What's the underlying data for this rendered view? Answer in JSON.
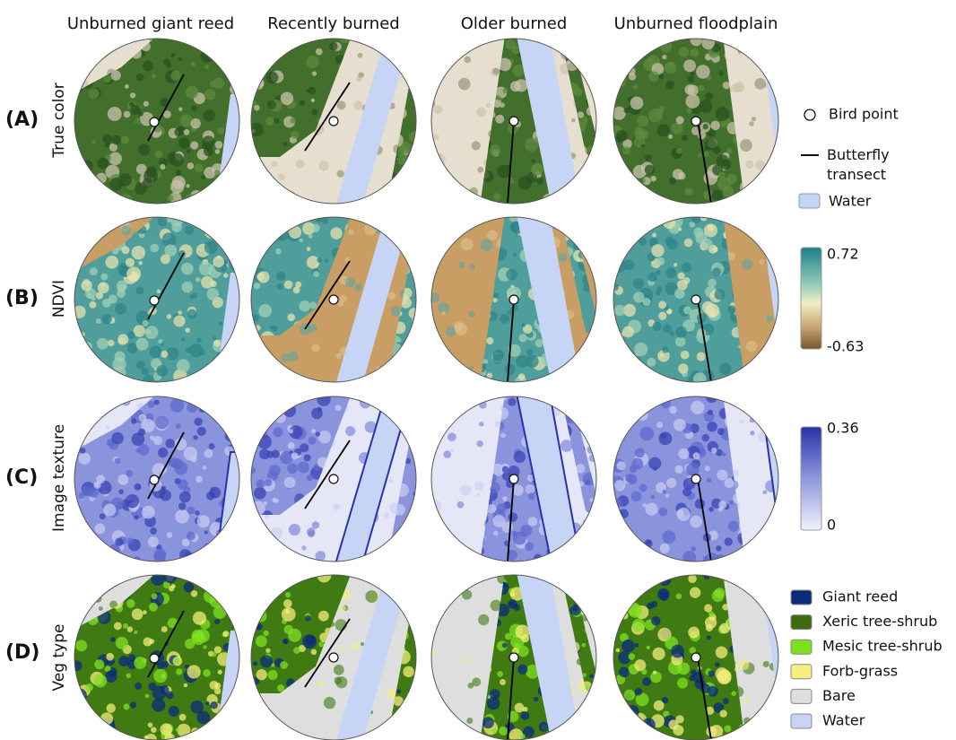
{
  "columns": [
    "Unburned giant reed",
    "Recently burned",
    "Older burned",
    "Unburned floodplain"
  ],
  "rows": [
    {
      "letter": "(A)",
      "label": "True color"
    },
    {
      "letter": "(B)",
      "label": "NDVI"
    },
    {
      "letter": "(C)",
      "label": "Image texture"
    },
    {
      "letter": "(D)",
      "label": "Veg type"
    }
  ],
  "legend_a": {
    "bird_point": "Bird point",
    "butterfly_transect": "Butterfly transect",
    "water": "Water"
  },
  "colorbar_ndvi": {
    "max": 0.72,
    "min": -0.63
  },
  "colorbar_texture": {
    "max": 0.36,
    "min": 0
  },
  "veg_legend": [
    "Giant reed",
    "Xeric tree-shrub",
    "Mesic tree-shrub",
    "Forb-grass",
    "Bare",
    "Water"
  ]
}
